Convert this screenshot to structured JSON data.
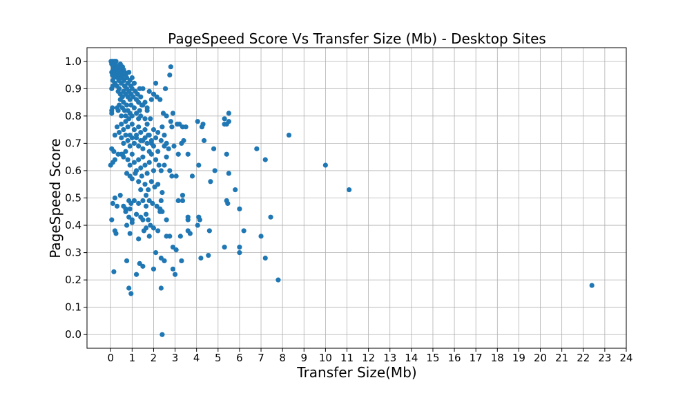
{
  "chart_data": {
    "type": "scatter",
    "title": "PageSpeed Score Vs Transfer Size (Mb) - Desktop Sites",
    "xlabel": "Transfer Size(Mb)",
    "ylabel": "PageSpeed Score",
    "xlim": [
      -1.1,
      24
    ],
    "ylim": [
      -0.05,
      1.05
    ],
    "xticks": [
      0,
      1,
      2,
      3,
      4,
      5,
      6,
      7,
      8,
      9,
      10,
      11,
      12,
      13,
      14,
      15,
      16,
      17,
      18,
      19,
      20,
      21,
      22,
      23,
      24
    ],
    "yticks": [
      0.0,
      0.1,
      0.2,
      0.3,
      0.4,
      0.5,
      0.6,
      0.7,
      0.8,
      0.9,
      1.0
    ],
    "ytick_labels": [
      "0.0",
      "0.1",
      "0.2",
      "0.3",
      "0.4",
      "0.5",
      "0.6",
      "0.7",
      "0.8",
      "0.9",
      "1.0"
    ],
    "grid": true,
    "marker_color": "#1f77b4",
    "points": [
      [
        0.02,
        1.0
      ],
      [
        0.05,
        0.99
      ],
      [
        0.1,
        1.0
      ],
      [
        0.12,
        0.98
      ],
      [
        0.15,
        0.99
      ],
      [
        0.18,
        1.0
      ],
      [
        0.2,
        0.97
      ],
      [
        0.22,
        0.99
      ],
      [
        0.25,
        1.0
      ],
      [
        0.3,
        0.98
      ],
      [
        0.05,
        0.96
      ],
      [
        0.08,
        0.95
      ],
      [
        0.1,
        0.93
      ],
      [
        0.12,
        0.97
      ],
      [
        0.15,
        0.94
      ],
      [
        0.18,
        0.96
      ],
      [
        0.2,
        0.92
      ],
      [
        0.25,
        0.95
      ],
      [
        0.28,
        0.97
      ],
      [
        0.32,
        0.94
      ],
      [
        0.35,
        0.96
      ],
      [
        0.38,
        0.93
      ],
      [
        0.4,
        0.98
      ],
      [
        0.42,
        0.95
      ],
      [
        0.45,
        0.99
      ],
      [
        0.48,
        0.97
      ],
      [
        0.5,
        0.96
      ],
      [
        0.52,
        0.94
      ],
      [
        0.55,
        0.98
      ],
      [
        0.58,
        0.95
      ],
      [
        0.6,
        0.97
      ],
      [
        0.62,
        0.93
      ],
      [
        0.65,
        0.96
      ],
      [
        0.7,
        0.95
      ],
      [
        0.75,
        0.94
      ],
      [
        0.8,
        0.92
      ],
      [
        0.85,
        0.96
      ],
      [
        0.9,
        0.93
      ],
      [
        0.95,
        0.91
      ],
      [
        1.0,
        0.94
      ],
      [
        0.3,
        0.91
      ],
      [
        0.35,
        0.89
      ],
      [
        0.4,
        0.9
      ],
      [
        0.45,
        0.88
      ],
      [
        0.5,
        0.92
      ],
      [
        0.55,
        0.87
      ],
      [
        0.6,
        0.89
      ],
      [
        0.65,
        0.91
      ],
      [
        0.7,
        0.88
      ],
      [
        0.75,
        0.9
      ],
      [
        0.8,
        0.87
      ],
      [
        0.85,
        0.89
      ],
      [
        0.9,
        0.86
      ],
      [
        0.95,
        0.88
      ],
      [
        1.0,
        0.9
      ],
      [
        1.05,
        0.87
      ],
      [
        1.1,
        0.92
      ],
      [
        1.15,
        0.89
      ],
      [
        1.2,
        0.86
      ],
      [
        1.25,
        0.88
      ],
      [
        1.3,
        0.85
      ],
      [
        1.35,
        0.9
      ],
      [
        1.4,
        0.87
      ],
      [
        1.45,
        0.84
      ],
      [
        1.5,
        0.9
      ],
      [
        1.6,
        0.85
      ],
      [
        1.7,
        0.82
      ],
      [
        1.8,
        0.89
      ],
      [
        1.9,
        0.86
      ],
      [
        2.0,
        0.88
      ],
      [
        0.05,
        0.9
      ],
      [
        0.1,
        0.91
      ],
      [
        0.08,
        0.83
      ],
      [
        0.05,
        0.81
      ],
      [
        0.3,
        0.83
      ],
      [
        0.35,
        0.82
      ],
      [
        0.4,
        0.84
      ],
      [
        0.45,
        0.86
      ],
      [
        0.5,
        0.8
      ],
      [
        0.55,
        0.83
      ],
      [
        0.6,
        0.85
      ],
      [
        0.65,
        0.82
      ],
      [
        0.7,
        0.8
      ],
      [
        0.75,
        0.84
      ],
      [
        0.8,
        0.82
      ],
      [
        0.85,
        0.79
      ],
      [
        0.9,
        0.81
      ],
      [
        0.95,
        0.84
      ],
      [
        1.0,
        0.8
      ],
      [
        1.1,
        0.83
      ],
      [
        1.2,
        0.81
      ],
      [
        1.3,
        0.79
      ],
      [
        1.4,
        0.8
      ],
      [
        1.5,
        0.84
      ],
      [
        1.6,
        0.79
      ],
      [
        1.7,
        0.83
      ],
      [
        1.85,
        0.79
      ],
      [
        2.1,
        0.92
      ],
      [
        2.15,
        0.87
      ],
      [
        2.3,
        0.86
      ],
      [
        2.45,
        0.81
      ],
      [
        2.55,
        0.9
      ],
      [
        2.6,
        0.8
      ],
      [
        2.8,
        0.98
      ],
      [
        2.75,
        0.95
      ],
      [
        2.9,
        0.81
      ],
      [
        3.1,
        0.77
      ],
      [
        3.2,
        0.77
      ],
      [
        3.35,
        0.76
      ],
      [
        2.8,
        0.78
      ],
      [
        0.3,
        0.76
      ],
      [
        0.4,
        0.74
      ],
      [
        0.5,
        0.77
      ],
      [
        0.6,
        0.75
      ],
      [
        0.7,
        0.78
      ],
      [
        0.8,
        0.76
      ],
      [
        0.9,
        0.73
      ],
      [
        1.0,
        0.77
      ],
      [
        1.1,
        0.75
      ],
      [
        1.2,
        0.72
      ],
      [
        1.3,
        0.76
      ],
      [
        1.4,
        0.74
      ],
      [
        1.5,
        0.71
      ],
      [
        1.6,
        0.75
      ],
      [
        1.7,
        0.77
      ],
      [
        1.8,
        0.73
      ],
      [
        1.9,
        0.7
      ],
      [
        2.0,
        0.75
      ],
      [
        2.1,
        0.72
      ],
      [
        2.2,
        0.74
      ],
      [
        0.5,
        0.72
      ],
      [
        0.6,
        0.7
      ],
      [
        0.7,
        0.73
      ],
      [
        0.8,
        0.71
      ],
      [
        0.9,
        0.69
      ],
      [
        1.0,
        0.72
      ],
      [
        1.1,
        0.7
      ],
      [
        1.2,
        0.73
      ],
      [
        1.3,
        0.69
      ],
      [
        1.4,
        0.71
      ],
      [
        1.5,
        0.68
      ],
      [
        1.6,
        0.72
      ],
      [
        1.7,
        0.7
      ],
      [
        1.8,
        0.67
      ],
      [
        1.9,
        0.71
      ],
      [
        2.0,
        0.69
      ],
      [
        2.2,
        0.67
      ],
      [
        2.35,
        0.71
      ],
      [
        2.4,
        0.76
      ],
      [
        2.5,
        0.73
      ],
      [
        2.6,
        0.7
      ],
      [
        2.7,
        0.68
      ],
      [
        2.85,
        0.76
      ],
      [
        2.95,
        0.69
      ],
      [
        3.3,
        0.7
      ],
      [
        3.5,
        0.76
      ],
      [
        3.6,
        0.66
      ],
      [
        3.15,
        0.66
      ],
      [
        0.05,
        0.68
      ],
      [
        0.15,
        0.67
      ],
      [
        0.2,
        0.73
      ],
      [
        0.1,
        0.63
      ],
      [
        0.2,
        0.64
      ],
      [
        0.35,
        0.66
      ],
      [
        0.5,
        0.66
      ],
      [
        0.6,
        0.65
      ],
      [
        0.7,
        0.67
      ],
      [
        0.8,
        0.64
      ],
      [
        0.9,
        0.62
      ],
      [
        1.0,
        0.66
      ],
      [
        1.1,
        0.63
      ],
      [
        1.2,
        0.6
      ],
      [
        1.3,
        0.64
      ],
      [
        1.4,
        0.61
      ],
      [
        1.5,
        0.65
      ],
      [
        1.6,
        0.62
      ],
      [
        1.7,
        0.59
      ],
      [
        1.8,
        0.63
      ],
      [
        1.9,
        0.66
      ],
      [
        2.0,
        0.6
      ],
      [
        2.1,
        0.64
      ],
      [
        2.25,
        0.62
      ],
      [
        2.35,
        0.6
      ],
      [
        2.5,
        0.62
      ],
      [
        2.6,
        0.65
      ],
      [
        2.75,
        0.6
      ],
      [
        2.85,
        0.58
      ],
      [
        3.05,
        0.58
      ],
      [
        3.8,
        0.58
      ],
      [
        0.75,
        0.59
      ],
      [
        0.9,
        0.58
      ],
      [
        1.0,
        0.57
      ],
      [
        1.15,
        0.59
      ],
      [
        1.3,
        0.56
      ],
      [
        1.45,
        0.58
      ],
      [
        1.6,
        0.55
      ],
      [
        1.75,
        0.53
      ],
      [
        1.9,
        0.56
      ],
      [
        2.05,
        0.54
      ],
      [
        2.2,
        0.55
      ],
      [
        1.4,
        0.53
      ],
      [
        1.65,
        0.51
      ],
      [
        2.4,
        0.52
      ],
      [
        2.35,
        0.49
      ],
      [
        3.15,
        0.49
      ],
      [
        3.35,
        0.49
      ],
      [
        3.35,
        0.51
      ],
      [
        0.1,
        0.48
      ],
      [
        0.2,
        0.5
      ],
      [
        0.45,
        0.51
      ],
      [
        0.6,
        0.47
      ],
      [
        0.7,
        0.46
      ],
      [
        0.85,
        0.49
      ],
      [
        0.95,
        0.48
      ],
      [
        1.1,
        0.49
      ],
      [
        1.3,
        0.48
      ],
      [
        1.5,
        0.49
      ],
      [
        1.65,
        0.47
      ],
      [
        1.8,
        0.49
      ],
      [
        1.95,
        0.48
      ],
      [
        2.15,
        0.47
      ],
      [
        2.3,
        0.46
      ],
      [
        2.3,
        0.45
      ],
      [
        2.4,
        0.45
      ],
      [
        0.3,
        0.47
      ],
      [
        0.7,
        0.45
      ],
      [
        0.9,
        0.46
      ],
      [
        0.85,
        0.43
      ],
      [
        1.0,
        0.42
      ],
      [
        1.2,
        0.44
      ],
      [
        1.4,
        0.43
      ],
      [
        1.5,
        0.42
      ],
      [
        1.65,
        0.44
      ],
      [
        1.75,
        0.42
      ],
      [
        1.85,
        0.4
      ],
      [
        2.0,
        0.39
      ],
      [
        2.2,
        0.38
      ],
      [
        2.6,
        0.42
      ],
      [
        2.75,
        0.36
      ],
      [
        2.6,
        0.36
      ],
      [
        1.65,
        0.39
      ],
      [
        1.8,
        0.36
      ],
      [
        0.05,
        0.42
      ],
      [
        0.2,
        0.38
      ],
      [
        0.25,
        0.37
      ],
      [
        0.75,
        0.4
      ],
      [
        0.9,
        0.37
      ],
      [
        1.0,
        0.41
      ],
      [
        1.3,
        0.35
      ],
      [
        1.55,
        0.38
      ],
      [
        3.25,
        0.36
      ],
      [
        3.6,
        0.38
      ],
      [
        3.7,
        0.37
      ],
      [
        3.6,
        0.42
      ],
      [
        3.6,
        0.43
      ],
      [
        4.05,
        0.4
      ],
      [
        4.1,
        0.43
      ],
      [
        4.15,
        0.42
      ],
      [
        4.6,
        0.38
      ],
      [
        5.3,
        0.32
      ],
      [
        2.1,
        0.3
      ],
      [
        2.35,
        0.28
      ],
      [
        2.5,
        0.27
      ],
      [
        2.9,
        0.32
      ],
      [
        3.05,
        0.31
      ],
      [
        3.3,
        0.27
      ],
      [
        4.2,
        0.28
      ],
      [
        4.55,
        0.29
      ],
      [
        0.75,
        0.27
      ],
      [
        1.35,
        0.26
      ],
      [
        1.5,
        0.25
      ],
      [
        2.0,
        0.24
      ],
      [
        2.9,
        0.24
      ],
      [
        3.0,
        0.22
      ],
      [
        0.15,
        0.23
      ],
      [
        1.2,
        0.22
      ],
      [
        0.85,
        0.17
      ],
      [
        0.95,
        0.15
      ],
      [
        2.35,
        0.17
      ],
      [
        2.4,
        0.0
      ],
      [
        4.05,
        0.78
      ],
      [
        4.3,
        0.77
      ],
      [
        4.25,
        0.76
      ],
      [
        4.35,
        0.71
      ],
      [
        4.8,
        0.68
      ],
      [
        5.3,
        0.79
      ],
      [
        5.4,
        0.77
      ],
      [
        5.5,
        0.78
      ],
      [
        5.5,
        0.81
      ],
      [
        5.3,
        0.77
      ],
      [
        4.1,
        0.62
      ],
      [
        4.85,
        0.6
      ],
      [
        4.65,
        0.56
      ],
      [
        5.4,
        0.66
      ],
      [
        5.5,
        0.59
      ],
      [
        5.8,
        0.53
      ],
      [
        5.45,
        0.48
      ],
      [
        5.4,
        0.49
      ],
      [
        6.0,
        0.46
      ],
      [
        6.2,
        0.38
      ],
      [
        6.0,
        0.32
      ],
      [
        6.0,
        0.3
      ],
      [
        6.8,
        0.68
      ],
      [
        7.2,
        0.64
      ],
      [
        7.45,
        0.43
      ],
      [
        7.0,
        0.36
      ],
      [
        7.2,
        0.28
      ],
      [
        7.8,
        0.2
      ],
      [
        8.3,
        0.73
      ],
      [
        10.0,
        0.62
      ],
      [
        11.1,
        0.53
      ],
      [
        22.4,
        0.18
      ],
      [
        0.0,
        0.62
      ],
      [
        0.05,
        0.82
      ],
      [
        0.95,
        0.88
      ],
      [
        1.75,
        0.73
      ],
      [
        1.35,
        0.82
      ],
      [
        2.5,
        0.69
      ],
      [
        3.4,
        0.71
      ],
      [
        0.55,
        0.66
      ]
    ]
  }
}
